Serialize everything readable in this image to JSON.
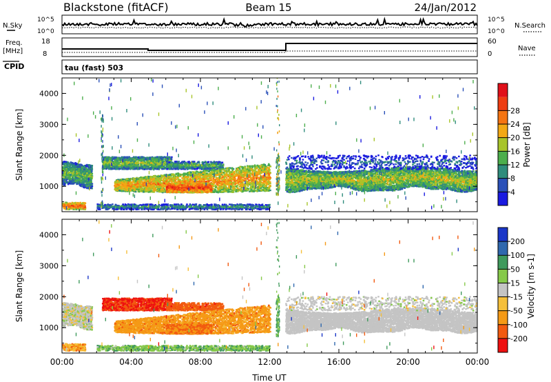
{
  "header": {
    "station": "Blackstone (fitACF)",
    "beam": "Beam 15",
    "date": "24/Jan/2012"
  },
  "status_panels": {
    "nsky_label": "N.Sky",
    "nsearch_label": "N.Search",
    "noise_ticks": [
      "10^5",
      "10^0"
    ],
    "freq_label_1": "Freq.",
    "freq_label_2": "[MHz]",
    "freq_ticks": [
      "18",
      "8"
    ],
    "nave_label": "Nave",
    "nave_ticks": [
      "60",
      "0"
    ],
    "cpid_label": "CPID",
    "cpid_value": "tau (fast) 503"
  },
  "colors": {
    "power_scale": [
      "#1a1ae0",
      "#2a50b8",
      "#2f8c7c",
      "#4cae4c",
      "#a8c42a",
      "#f2a814",
      "#f57412",
      "#ee3d12",
      "#e0101a"
    ],
    "velocity_scale": [
      "#ee1010",
      "#f25a10",
      "#f59a16",
      "#f5bf3a",
      "#c4c4c4",
      "#86c94a",
      "#3f9a5c",
      "#2f68ae",
      "#1a36c8"
    ]
  },
  "chart_data": [
    {
      "type": "heatmap",
      "quantity": "power",
      "xlabel": "Time UT",
      "ylabel": "Slant Range [km]",
      "colorbar_label": "Power [dB]",
      "colorbar_ticks": [
        "4",
        "8",
        "12",
        "16",
        "20",
        "24",
        "28"
      ],
      "x_ticks": [
        "00:00",
        "04:00",
        "08:00",
        "12:00",
        "16:00",
        "20:00",
        "00:00"
      ],
      "y_ticks": [
        "1000",
        "2000",
        "3000",
        "4000"
      ],
      "xlim": [
        0,
        24
      ],
      "ylim": [
        180,
        4500
      ],
      "grid": false
    },
    {
      "type": "heatmap",
      "quantity": "velocity",
      "xlabel": "Time UT",
      "ylabel": "Slant Range [km]",
      "colorbar_label": "Velocity [m s-1]",
      "colorbar_ticks": [
        "-200",
        "-100",
        "-50",
        "-15",
        "15",
        "50",
        "100",
        "200"
      ],
      "x_ticks": [
        "00:00",
        "04:00",
        "08:00",
        "12:00",
        "16:00",
        "20:00",
        "00:00"
      ],
      "y_ticks": [
        "1000",
        "2000",
        "3000",
        "4000"
      ],
      "xlim": [
        0,
        24
      ],
      "ylim": [
        180,
        4500
      ],
      "grid": false
    }
  ]
}
